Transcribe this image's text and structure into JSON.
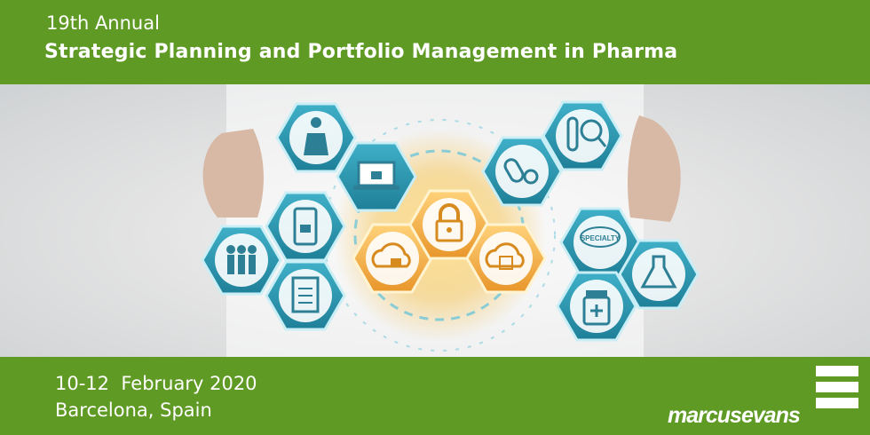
{
  "header": {
    "edition": "19th Annual",
    "title": "Strategic Planning and Portfolio Management in Pharma"
  },
  "footer": {
    "dates": "10-12  February 2020",
    "location": "Barcelona, Spain",
    "logo_text": "marcusevans"
  },
  "hero": {
    "pill_label": "SPECIALTY",
    "icons": [
      "person-icon",
      "laptop-lock-icon",
      "phone-lock-icon",
      "people-icon",
      "clipboard-icon",
      "cloud-lock-icon",
      "padlock-icon",
      "cloud-shield-icon",
      "pills-icon",
      "test-tube-icon",
      "specialty-pill-icon",
      "flask-icon",
      "medicine-bottle-icon"
    ]
  },
  "colors": {
    "brand_green": "#5e9a24",
    "hex_teal": "#2d9ab3",
    "hex_orange": "#f0a830"
  }
}
